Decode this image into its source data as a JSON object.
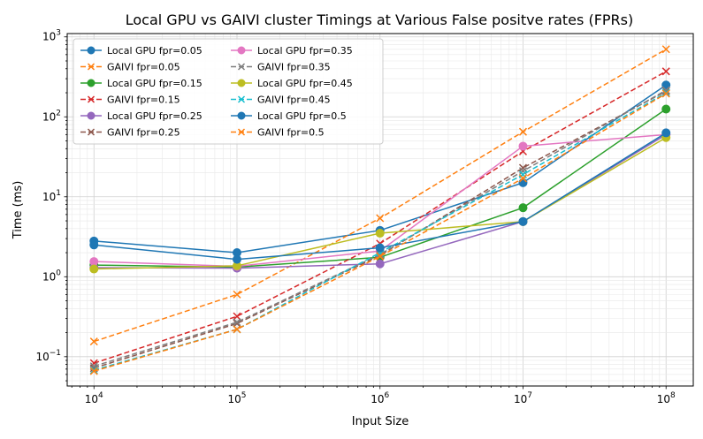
{
  "chart_data": {
    "type": "line",
    "title": "Local GPU vs GAIVI cluster Timings at Various False positve rates (FPRs)",
    "xlabel": "Input Size",
    "ylabel": "Time (ms)",
    "xscale": "log",
    "yscale": "log",
    "xlim": [
      6500,
      155000000
    ],
    "ylim": [
      0.043,
      1100
    ],
    "grid": true,
    "legend_position": "upper-left",
    "legend_columns": 2,
    "x": [
      10000,
      100000,
      1000000,
      10000000,
      100000000
    ],
    "x_ticks": [
      {
        "base": "10",
        "exp": "4",
        "value": 10000
      },
      {
        "base": "10",
        "exp": "5",
        "value": 100000
      },
      {
        "base": "10",
        "exp": "6",
        "value": 1000000
      },
      {
        "base": "10",
        "exp": "7",
        "value": 10000000
      },
      {
        "base": "10",
        "exp": "8",
        "value": 100000000
      }
    ],
    "y_ticks": [
      {
        "base": "10",
        "exp": "−1",
        "value": 0.1
      },
      {
        "base": "10",
        "exp": "0",
        "value": 1
      },
      {
        "base": "10",
        "exp": "1",
        "value": 10
      },
      {
        "base": "10",
        "exp": "2",
        "value": 100
      },
      {
        "base": "10",
        "exp": "3",
        "value": 1000
      }
    ],
    "series": [
      {
        "name": "Local GPU fpr=0.05",
        "color": "#1f77b4",
        "style": "solid",
        "marker": "circle",
        "values": [
          2.8,
          2.0,
          3.8,
          15.0,
          250
        ]
      },
      {
        "name": "GAIVI fpr=0.05",
        "color": "#ff7f0e",
        "style": "dashed",
        "marker": "x",
        "values": [
          0.155,
          0.6,
          5.4,
          65,
          700
        ]
      },
      {
        "name": "Local GPU fpr=0.15",
        "color": "#2ca02c",
        "style": "solid",
        "marker": "circle",
        "values": [
          1.4,
          1.32,
          1.75,
          7.3,
          125
        ]
      },
      {
        "name": "GAIVI fpr=0.15",
        "color": "#d62728",
        "style": "dashed",
        "marker": "x",
        "values": [
          0.083,
          0.32,
          2.6,
          37,
          370
        ]
      },
      {
        "name": "Local GPU fpr=0.25",
        "color": "#9467bd",
        "style": "solid",
        "marker": "circle",
        "values": [
          1.3,
          1.28,
          1.45,
          4.9,
          60
        ]
      },
      {
        "name": "GAIVI fpr=0.25",
        "color": "#8c564b",
        "style": "dashed",
        "marker": "x",
        "values": [
          0.072,
          0.26,
          1.85,
          23,
          210
        ]
      },
      {
        "name": "Local GPU fpr=0.35",
        "color": "#e377c2",
        "style": "solid",
        "marker": "circle",
        "values": [
          1.55,
          1.35,
          2.1,
          43,
          60
        ]
      },
      {
        "name": "GAIVI fpr=0.35",
        "color": "#7f7f7f",
        "style": "dashed",
        "marker": "x",
        "values": [
          0.076,
          0.27,
          1.9,
          21,
          215
        ]
      },
      {
        "name": "Local GPU fpr=0.45",
        "color": "#bcbd22",
        "style": "solid",
        "marker": "circle",
        "values": [
          1.25,
          1.37,
          3.5,
          4.9,
          55
        ]
      },
      {
        "name": "GAIVI fpr=0.45",
        "color": "#17becf",
        "style": "dashed",
        "marker": "x",
        "values": [
          0.068,
          0.22,
          2.0,
          19,
          200
        ]
      },
      {
        "name": "Local GPU fpr=0.5",
        "color": "#1f77b4",
        "style": "solid",
        "marker": "circle",
        "values": [
          2.5,
          1.65,
          2.3,
          4.9,
          63
        ]
      },
      {
        "name": "GAIVI fpr=0.5",
        "color": "#ff7f0e",
        "style": "dashed",
        "marker": "x",
        "values": [
          0.066,
          0.22,
          1.8,
          17,
          195
        ]
      }
    ]
  }
}
